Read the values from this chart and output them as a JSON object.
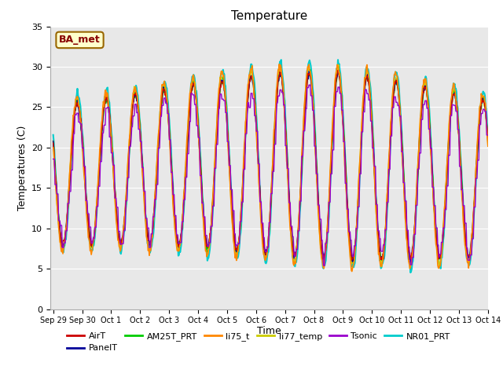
{
  "title": "Temperature",
  "xlabel": "Time",
  "ylabel": "Temperatures (C)",
  "ylim": [
    0,
    35
  ],
  "yticks": [
    0,
    5,
    10,
    15,
    20,
    25,
    30,
    35
  ],
  "annotation": "BA_met",
  "series_order": [
    "NR01_PRT",
    "li77_temp",
    "li75_t",
    "AM25T_PRT",
    "PanelT",
    "AirT",
    "Tsonic"
  ],
  "series": {
    "AirT": {
      "color": "#cc0000",
      "lw": 1.0,
      "zorder": 5
    },
    "PanelT": {
      "color": "#000099",
      "lw": 1.0,
      "zorder": 4
    },
    "AM25T_PRT": {
      "color": "#00cc00",
      "lw": 1.0,
      "zorder": 3
    },
    "li75_t": {
      "color": "#ff8800",
      "lw": 1.2,
      "zorder": 6
    },
    "li77_temp": {
      "color": "#cccc00",
      "lw": 1.2,
      "zorder": 2
    },
    "Tsonic": {
      "color": "#9900cc",
      "lw": 1.0,
      "zorder": 7
    },
    "NR01_PRT": {
      "color": "#00cccc",
      "lw": 1.5,
      "zorder": 1
    }
  },
  "legend_order": [
    "AirT",
    "PanelT",
    "AM25T_PRT",
    "li75_t",
    "li77_temp",
    "Tsonic",
    "NR01_PRT"
  ],
  "xtick_labels": [
    "Sep 29",
    "Sep 30",
    "Oct 1",
    "Oct 2",
    "Oct 3",
    "Oct 4",
    "Oct 5",
    "Oct 6",
    "Oct 7",
    "Oct 8",
    "Oct 9",
    "Oct 10",
    "Oct 11",
    "Oct 12",
    "Oct 13",
    "Oct 14"
  ],
  "background_color": "#e8e8e8",
  "grid_color": "#ffffff",
  "figsize": [
    6.4,
    4.8
  ],
  "dpi": 100
}
